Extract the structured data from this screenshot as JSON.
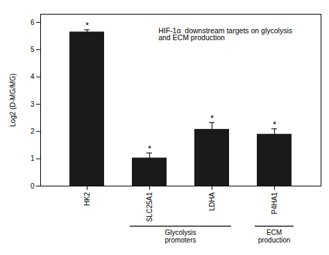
{
  "chart_data": {
    "type": "bar",
    "categories": [
      "HK2",
      "SLC25A1",
      "LDHA",
      "P4HA1"
    ],
    "values": [
      5.65,
      1.03,
      2.08,
      1.9
    ],
    "errors": [
      0.08,
      0.18,
      0.25,
      0.2
    ],
    "significance": [
      "*",
      "*",
      "*",
      "*"
    ],
    "color": "#1a1a1a",
    "ylabel": "Log2 (D-MG/MG)",
    "ylim": [
      0,
      6.3
    ],
    "yticks": [
      0,
      1,
      2,
      3,
      4,
      5,
      6
    ],
    "grid": false,
    "annotations": [
      "HIF-1α  downstream targets on glycolysis\nand ECM production"
    ],
    "groups": [
      {
        "label": "Glycolysis\npromoters",
        "categories": [
          "SLC25A1",
          "LDHA"
        ]
      },
      {
        "label": "ECM\nproduction",
        "categories": [
          "P4HA1"
        ]
      }
    ]
  }
}
